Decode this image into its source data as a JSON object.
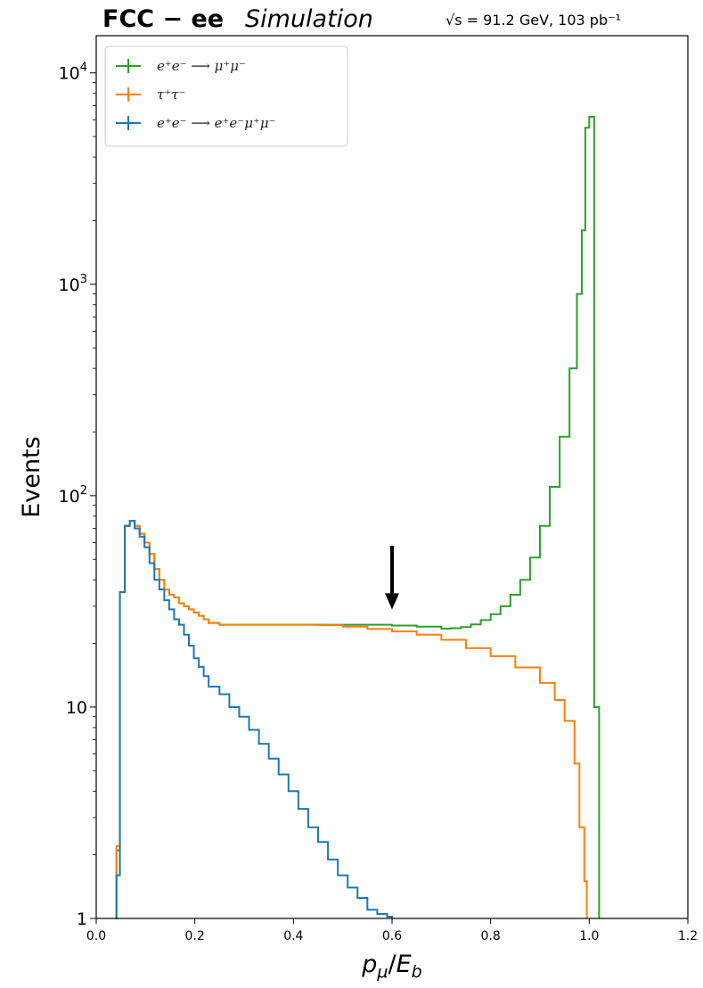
{
  "header": {
    "title_bold": "FCC − ee",
    "title_italic": "Simulation",
    "conditions": "√s = 91.2 GeV, 103 pb⁻¹"
  },
  "chart_data": {
    "type": "histogram",
    "xlabel": "pμ/Eb",
    "ylabel": "Events",
    "xlim": [
      0.0,
      1.2
    ],
    "ylim": [
      1,
      15000
    ],
    "yscale": "log",
    "grid": false,
    "legend_position": "top-left",
    "x_ticks": [
      "0.0",
      "0.2",
      "0.4",
      "0.6",
      "0.8",
      "1.0",
      "1.2"
    ],
    "y_ticks": [
      {
        "value": 1,
        "base": "1",
        "exp": ""
      },
      {
        "value": 10,
        "base": "10",
        "exp": ""
      },
      {
        "value": 100,
        "base": "10",
        "exp": "2"
      },
      {
        "value": 1000,
        "base": "10",
        "exp": "3"
      },
      {
        "value": 10000,
        "base": "10",
        "exp": "4"
      }
    ],
    "annotation": {
      "type": "arrow",
      "x": 0.6,
      "y_from": 58,
      "y_to": 29
    },
    "series": [
      {
        "name": "e⁺e⁻ ⟶ μ⁺μ⁻",
        "color": "#2ca02c",
        "points": [
          [
            0.04,
            1
          ],
          [
            0.041,
            2.1
          ],
          [
            0.048,
            35
          ],
          [
            0.058,
            72
          ],
          [
            0.068,
            76
          ],
          [
            0.078,
            72
          ],
          [
            0.088,
            66
          ],
          [
            0.098,
            60
          ],
          [
            0.108,
            53
          ],
          [
            0.118,
            45
          ],
          [
            0.128,
            40
          ],
          [
            0.138,
            36
          ],
          [
            0.148,
            34
          ],
          [
            0.158,
            33
          ],
          [
            0.168,
            31
          ],
          [
            0.178,
            30
          ],
          [
            0.188,
            29
          ],
          [
            0.198,
            28
          ],
          [
            0.208,
            27
          ],
          [
            0.218,
            26
          ],
          [
            0.228,
            25
          ],
          [
            0.25,
            24.5
          ],
          [
            0.3,
            24.5
          ],
          [
            0.35,
            24.5
          ],
          [
            0.4,
            24.5
          ],
          [
            0.45,
            24.5
          ],
          [
            0.5,
            24.5
          ],
          [
            0.55,
            24.5
          ],
          [
            0.6,
            24.3
          ],
          [
            0.65,
            24
          ],
          [
            0.7,
            23.5
          ],
          [
            0.72,
            23.6
          ],
          [
            0.74,
            23.9
          ],
          [
            0.76,
            24.6
          ],
          [
            0.78,
            25.8
          ],
          [
            0.8,
            27.5
          ],
          [
            0.82,
            30
          ],
          [
            0.84,
            34
          ],
          [
            0.86,
            40
          ],
          [
            0.88,
            51
          ],
          [
            0.9,
            72
          ],
          [
            0.92,
            110
          ],
          [
            0.94,
            190
          ],
          [
            0.96,
            400
          ],
          [
            0.975,
            900
          ],
          [
            0.985,
            1800
          ],
          [
            0.992,
            5500
          ],
          [
            1.0,
            6200
          ],
          [
            1.005,
            6200
          ],
          [
            1.01,
            10
          ],
          [
            1.02,
            10
          ],
          [
            1.02,
            1
          ]
        ]
      },
      {
        "name": "τ⁺τ⁻",
        "color": "#ff7f0e",
        "points": [
          [
            0.04,
            1
          ],
          [
            0.041,
            2.2
          ],
          [
            0.048,
            35
          ],
          [
            0.058,
            72
          ],
          [
            0.068,
            76
          ],
          [
            0.078,
            72
          ],
          [
            0.088,
            66
          ],
          [
            0.098,
            60
          ],
          [
            0.108,
            53
          ],
          [
            0.118,
            45
          ],
          [
            0.128,
            40
          ],
          [
            0.138,
            36
          ],
          [
            0.148,
            34
          ],
          [
            0.158,
            33
          ],
          [
            0.168,
            31
          ],
          [
            0.178,
            30
          ],
          [
            0.188,
            29
          ],
          [
            0.198,
            28
          ],
          [
            0.208,
            27
          ],
          [
            0.218,
            26
          ],
          [
            0.228,
            25
          ],
          [
            0.25,
            24.5
          ],
          [
            0.3,
            24.5
          ],
          [
            0.35,
            24.5
          ],
          [
            0.4,
            24.5
          ],
          [
            0.45,
            24.4
          ],
          [
            0.5,
            24
          ],
          [
            0.55,
            23.4
          ],
          [
            0.6,
            22.8
          ],
          [
            0.65,
            22
          ],
          [
            0.7,
            20.8
          ],
          [
            0.75,
            19
          ],
          [
            0.8,
            17.4
          ],
          [
            0.85,
            15.4
          ],
          [
            0.9,
            13
          ],
          [
            0.93,
            10.8
          ],
          [
            0.95,
            8.6
          ],
          [
            0.97,
            5.4
          ],
          [
            0.98,
            2.7
          ],
          [
            0.99,
            1.5
          ],
          [
            0.995,
            1.5
          ],
          [
            0.995,
            1
          ]
        ]
      },
      {
        "name": "e⁺e⁻ ⟶ e⁺e⁻μ⁺μ⁻",
        "color": "#1f77b4",
        "points": [
          [
            0.04,
            1
          ],
          [
            0.041,
            1.6
          ],
          [
            0.048,
            35
          ],
          [
            0.058,
            72
          ],
          [
            0.068,
            76
          ],
          [
            0.078,
            70
          ],
          [
            0.088,
            64
          ],
          [
            0.098,
            57
          ],
          [
            0.108,
            48
          ],
          [
            0.118,
            40
          ],
          [
            0.128,
            36
          ],
          [
            0.138,
            32
          ],
          [
            0.148,
            29
          ],
          [
            0.158,
            26
          ],
          [
            0.168,
            24.5
          ],
          [
            0.178,
            22
          ],
          [
            0.188,
            19.5
          ],
          [
            0.198,
            17
          ],
          [
            0.208,
            15.5
          ],
          [
            0.218,
            14
          ],
          [
            0.228,
            12.5
          ],
          [
            0.25,
            11.5
          ],
          [
            0.27,
            10
          ],
          [
            0.29,
            9
          ],
          [
            0.31,
            7.8
          ],
          [
            0.33,
            6.7
          ],
          [
            0.35,
            5.7
          ],
          [
            0.37,
            4.8
          ],
          [
            0.39,
            4
          ],
          [
            0.41,
            3.3
          ],
          [
            0.43,
            2.7
          ],
          [
            0.45,
            2.3
          ],
          [
            0.47,
            1.9
          ],
          [
            0.49,
            1.6
          ],
          [
            0.51,
            1.4
          ],
          [
            0.53,
            1.25
          ],
          [
            0.55,
            1.1
          ],
          [
            0.57,
            1.05
          ],
          [
            0.59,
            1.02
          ],
          [
            0.6,
            1
          ]
        ]
      }
    ]
  }
}
